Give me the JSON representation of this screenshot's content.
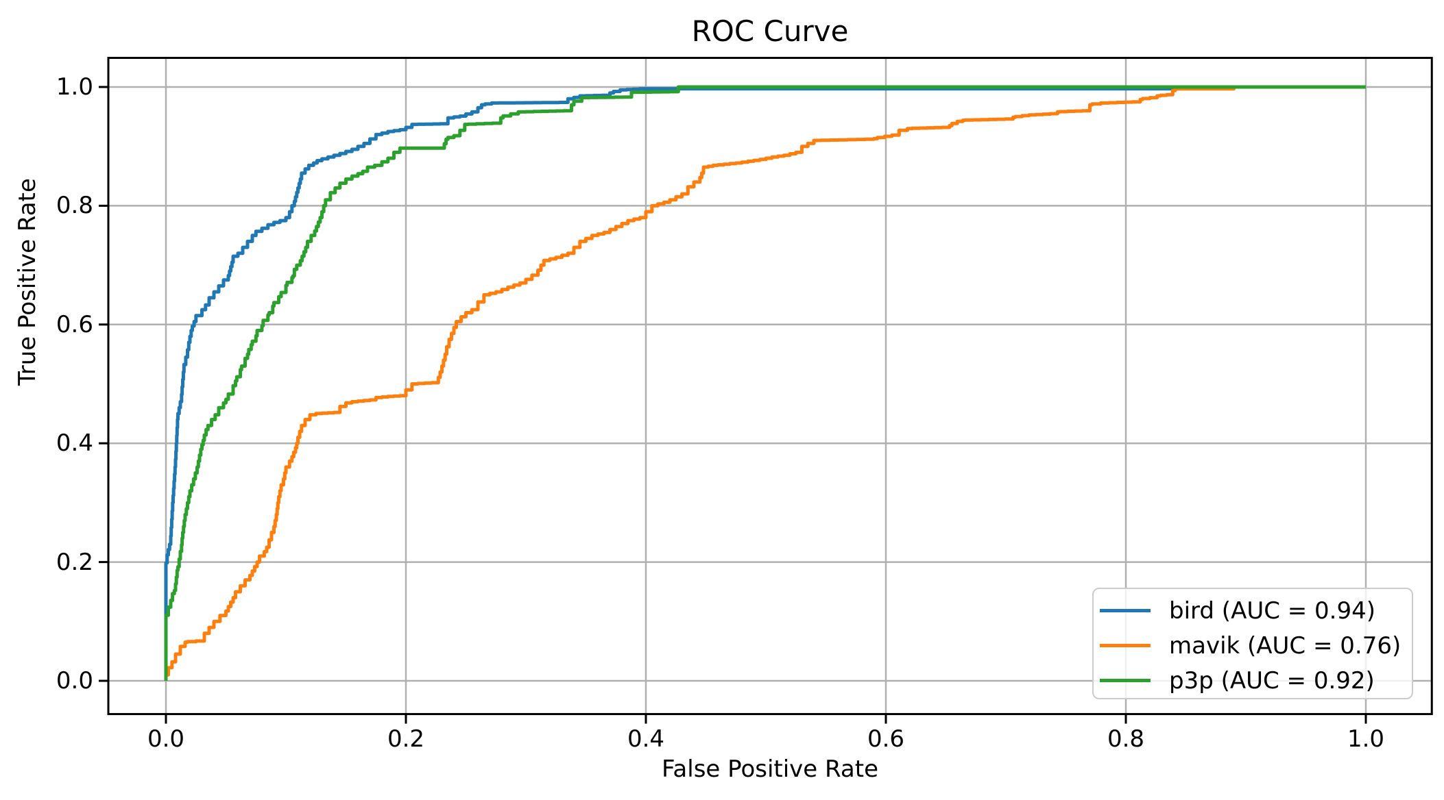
{
  "chart_data": {
    "type": "line",
    "subtype": "roc-step-curves",
    "title": "ROC Curve",
    "xlabel": "False Positive Rate",
    "ylabel": "True Positive Rate",
    "xlim": [
      -0.048,
      1.055
    ],
    "ylim": [
      -0.056,
      1.049
    ],
    "grid": true,
    "grid_color": "#b0b0b0",
    "spine_color": "#000000",
    "background_color": "#ffffff",
    "legend_position": "lower right",
    "x_ticks": [
      0.0,
      0.2,
      0.4,
      0.6,
      0.8,
      1.0
    ],
    "y_ticks": [
      0.0,
      0.2,
      0.4,
      0.6,
      0.8,
      1.0
    ],
    "x_tick_labels": [
      "0.0",
      "0.2",
      "0.4",
      "0.6",
      "0.8",
      "1.0"
    ],
    "y_tick_labels": [
      "0.0",
      "0.2",
      "0.4",
      "0.6",
      "0.8",
      "1.0"
    ],
    "series": [
      {
        "id": "bird",
        "name": "bird (AUC = 0.94)",
        "auc": 0.94,
        "color": "#1f77b4",
        "points": [
          [
            0,
            0
          ],
          [
            0,
            0.185
          ],
          [
            0.002,
            0.212
          ],
          [
            0.004,
            0.23
          ],
          [
            0.006,
            0.3
          ],
          [
            0.008,
            0.36
          ],
          [
            0.01,
            0.44
          ],
          [
            0.013,
            0.47
          ],
          [
            0.015,
            0.52
          ],
          [
            0.018,
            0.545
          ],
          [
            0.02,
            0.57
          ],
          [
            0.022,
            0.59
          ],
          [
            0.025,
            0.605
          ],
          [
            0.03,
            0.615
          ],
          [
            0.033,
            0.625
          ],
          [
            0.036,
            0.633
          ],
          [
            0.04,
            0.645
          ],
          [
            0.044,
            0.655
          ],
          [
            0.048,
            0.665
          ],
          [
            0.052,
            0.675
          ],
          [
            0.054,
            0.69
          ],
          [
            0.056,
            0.705
          ],
          [
            0.06,
            0.715
          ],
          [
            0.064,
            0.72
          ],
          [
            0.068,
            0.73
          ],
          [
            0.072,
            0.74
          ],
          [
            0.075,
            0.75
          ],
          [
            0.08,
            0.757
          ],
          [
            0.085,
            0.762
          ],
          [
            0.09,
            0.768
          ],
          [
            0.095,
            0.772
          ],
          [
            0.1,
            0.775
          ],
          [
            0.103,
            0.78
          ],
          [
            0.105,
            0.79
          ],
          [
            0.107,
            0.8
          ],
          [
            0.109,
            0.815
          ],
          [
            0.111,
            0.83
          ],
          [
            0.113,
            0.845
          ],
          [
            0.116,
            0.855
          ],
          [
            0.119,
            0.862
          ],
          [
            0.123,
            0.868
          ],
          [
            0.126,
            0.872
          ],
          [
            0.13,
            0.876
          ],
          [
            0.14,
            0.882
          ],
          [
            0.15,
            0.888
          ],
          [
            0.16,
            0.895
          ],
          [
            0.17,
            0.905
          ],
          [
            0.18,
            0.92
          ],
          [
            0.19,
            0.925
          ],
          [
            0.2,
            0.928
          ],
          [
            0.205,
            0.932
          ],
          [
            0.21,
            0.937
          ],
          [
            0.235,
            0.938
          ],
          [
            0.24,
            0.948
          ],
          [
            0.25,
            0.951
          ],
          [
            0.26,
            0.958
          ],
          [
            0.263,
            0.965
          ],
          [
            0.266,
            0.97
          ],
          [
            0.277,
            0.973
          ],
          [
            0.335,
            0.974
          ],
          [
            0.34,
            0.98
          ],
          [
            0.35,
            0.985
          ],
          [
            0.37,
            0.986
          ],
          [
            0.373,
            0.99
          ],
          [
            0.384,
            0.995
          ],
          [
            0.4,
            0.997
          ],
          [
            0.89,
            0.997
          ],
          [
            0.89,
            1
          ],
          [
            1,
            1
          ]
        ]
      },
      {
        "id": "mavik",
        "name": "mavik (AUC = 0.76)",
        "auc": 0.76,
        "color": "#ff7f0e",
        "points": [
          [
            0,
            0
          ],
          [
            0.002,
            0.01
          ],
          [
            0.005,
            0.022
          ],
          [
            0.008,
            0.032
          ],
          [
            0.012,
            0.045
          ],
          [
            0.016,
            0.058
          ],
          [
            0.018,
            0.065
          ],
          [
            0.032,
            0.067
          ],
          [
            0.036,
            0.08
          ],
          [
            0.04,
            0.09
          ],
          [
            0.045,
            0.1
          ],
          [
            0.05,
            0.11
          ],
          [
            0.054,
            0.125
          ],
          [
            0.058,
            0.14
          ],
          [
            0.062,
            0.15
          ],
          [
            0.066,
            0.16
          ],
          [
            0.07,
            0.17
          ],
          [
            0.074,
            0.185
          ],
          [
            0.078,
            0.2
          ],
          [
            0.082,
            0.21
          ],
          [
            0.086,
            0.225
          ],
          [
            0.09,
            0.25
          ],
          [
            0.092,
            0.27
          ],
          [
            0.094,
            0.3
          ],
          [
            0.096,
            0.32
          ],
          [
            0.098,
            0.33
          ],
          [
            0.1,
            0.35
          ],
          [
            0.103,
            0.36
          ],
          [
            0.105,
            0.37
          ],
          [
            0.108,
            0.385
          ],
          [
            0.11,
            0.4
          ],
          [
            0.113,
            0.42
          ],
          [
            0.116,
            0.43
          ],
          [
            0.12,
            0.44
          ],
          [
            0.125,
            0.448
          ],
          [
            0.13,
            0.45
          ],
          [
            0.145,
            0.452
          ],
          [
            0.15,
            0.462
          ],
          [
            0.155,
            0.468
          ],
          [
            0.16,
            0.47
          ],
          [
            0.175,
            0.473
          ],
          [
            0.18,
            0.477
          ],
          [
            0.19,
            0.479
          ],
          [
            0.2,
            0.48
          ],
          [
            0.205,
            0.49
          ],
          [
            0.21,
            0.5
          ],
          [
            0.227,
            0.502
          ],
          [
            0.23,
            0.52
          ],
          [
            0.234,
            0.55
          ],
          [
            0.238,
            0.575
          ],
          [
            0.242,
            0.595
          ],
          [
            0.246,
            0.605
          ],
          [
            0.25,
            0.613
          ],
          [
            0.255,
            0.62
          ],
          [
            0.26,
            0.625
          ],
          [
            0.265,
            0.638
          ],
          [
            0.27,
            0.65
          ],
          [
            0.28,
            0.655
          ],
          [
            0.29,
            0.663
          ],
          [
            0.3,
            0.67
          ],
          [
            0.305,
            0.676
          ],
          [
            0.31,
            0.683
          ],
          [
            0.315,
            0.7
          ],
          [
            0.32,
            0.708
          ],
          [
            0.33,
            0.713
          ],
          [
            0.34,
            0.72
          ],
          [
            0.345,
            0.73
          ],
          [
            0.35,
            0.74
          ],
          [
            0.36,
            0.75
          ],
          [
            0.37,
            0.755
          ],
          [
            0.38,
            0.765
          ],
          [
            0.39,
            0.775
          ],
          [
            0.4,
            0.78
          ],
          [
            0.405,
            0.79
          ],
          [
            0.41,
            0.8
          ],
          [
            0.42,
            0.806
          ],
          [
            0.425,
            0.81
          ],
          [
            0.43,
            0.815
          ],
          [
            0.435,
            0.82
          ],
          [
            0.44,
            0.832
          ],
          [
            0.445,
            0.84
          ],
          [
            0.448,
            0.855
          ],
          [
            0.452,
            0.865
          ],
          [
            0.46,
            0.868
          ],
          [
            0.47,
            0.87
          ],
          [
            0.48,
            0.872
          ],
          [
            0.49,
            0.875
          ],
          [
            0.5,
            0.878
          ],
          [
            0.51,
            0.882
          ],
          [
            0.52,
            0.885
          ],
          [
            0.53,
            0.89
          ],
          [
            0.535,
            0.9
          ],
          [
            0.54,
            0.905
          ],
          [
            0.546,
            0.91
          ],
          [
            0.59,
            0.912
          ],
          [
            0.593,
            0.913
          ],
          [
            0.611,
            0.919
          ],
          [
            0.618,
            0.927
          ],
          [
            0.622,
            0.93
          ],
          [
            0.653,
            0.932
          ],
          [
            0.655,
            0.935
          ],
          [
            0.664,
            0.942
          ],
          [
            0.666,
            0.944
          ],
          [
            0.706,
            0.946
          ],
          [
            0.708,
            0.949
          ],
          [
            0.725,
            0.953
          ],
          [
            0.743,
            0.955
          ],
          [
            0.745,
            0.958
          ],
          [
            0.77,
            0.96
          ],
          [
            0.772,
            0.97
          ],
          [
            0.786,
            0.973
          ],
          [
            0.812,
            0.975
          ],
          [
            0.814,
            0.979
          ],
          [
            0.826,
            0.982
          ],
          [
            0.829,
            0.985
          ],
          [
            0.839,
            0.987
          ],
          [
            0.841,
            0.994
          ],
          [
            0.845,
            0.997
          ],
          [
            0.89,
            0.997
          ],
          [
            0.89,
            1
          ],
          [
            1,
            1
          ]
        ]
      },
      {
        "id": "p3p",
        "name": "p3p (AUC = 0.92)",
        "auc": 0.92,
        "color": "#2ca02c",
        "points": [
          [
            0,
            0
          ],
          [
            0,
            0.097
          ],
          [
            0.004,
            0.124
          ],
          [
            0.007,
            0.147
          ],
          [
            0.008,
            0.152
          ],
          [
            0.01,
            0.186
          ],
          [
            0.011,
            0.192
          ],
          [
            0.013,
            0.218
          ],
          [
            0.014,
            0.24
          ],
          [
            0.016,
            0.27
          ],
          [
            0.018,
            0.29
          ],
          [
            0.02,
            0.31
          ],
          [
            0.023,
            0.33
          ],
          [
            0.026,
            0.35
          ],
          [
            0.028,
            0.37
          ],
          [
            0.03,
            0.39
          ],
          [
            0.032,
            0.405
          ],
          [
            0.035,
            0.423
          ],
          [
            0.038,
            0.43
          ],
          [
            0.041,
            0.44
          ],
          [
            0.044,
            0.448
          ],
          [
            0.048,
            0.46
          ],
          [
            0.05,
            0.468
          ],
          [
            0.052,
            0.474
          ],
          [
            0.056,
            0.483
          ],
          [
            0.058,
            0.497
          ],
          [
            0.059,
            0.505
          ],
          [
            0.062,
            0.512
          ],
          [
            0.063,
            0.524
          ],
          [
            0.066,
            0.53
          ],
          [
            0.068,
            0.543
          ],
          [
            0.069,
            0.55
          ],
          [
            0.071,
            0.558
          ],
          [
            0.072,
            0.566
          ],
          [
            0.075,
            0.572
          ],
          [
            0.076,
            0.581
          ],
          [
            0.08,
            0.59
          ],
          [
            0.081,
            0.598
          ],
          [
            0.085,
            0.607
          ],
          [
            0.086,
            0.616
          ],
          [
            0.089,
            0.62
          ],
          [
            0.09,
            0.631
          ],
          [
            0.094,
            0.637
          ],
          [
            0.096,
            0.647
          ],
          [
            0.1,
            0.654
          ],
          [
            0.101,
            0.666
          ],
          [
            0.105,
            0.671
          ],
          [
            0.106,
            0.679
          ],
          [
            0.107,
            0.682
          ],
          [
            0.109,
            0.693
          ],
          [
            0.112,
            0.7
          ],
          [
            0.115,
            0.715
          ],
          [
            0.118,
            0.73
          ],
          [
            0.121,
            0.74
          ],
          [
            0.124,
            0.75
          ],
          [
            0.127,
            0.765
          ],
          [
            0.13,
            0.78
          ],
          [
            0.133,
            0.8
          ],
          [
            0.137,
            0.81
          ],
          [
            0.141,
            0.822
          ],
          [
            0.145,
            0.83
          ],
          [
            0.15,
            0.838
          ],
          [
            0.155,
            0.845
          ],
          [
            0.16,
            0.85
          ],
          [
            0.168,
            0.858
          ],
          [
            0.174,
            0.865
          ],
          [
            0.18,
            0.868
          ],
          [
            0.19,
            0.88
          ],
          [
            0.195,
            0.89
          ],
          [
            0.2,
            0.897
          ],
          [
            0.232,
            0.897
          ],
          [
            0.235,
            0.912
          ],
          [
            0.245,
            0.918
          ],
          [
            0.249,
            0.927
          ],
          [
            0.252,
            0.937
          ],
          [
            0.279,
            0.939
          ],
          [
            0.281,
            0.948
          ],
          [
            0.3,
            0.958
          ],
          [
            0.338,
            0.96
          ],
          [
            0.34,
            0.97
          ],
          [
            0.353,
            0.982
          ],
          [
            0.388,
            0.983
          ],
          [
            0.39,
            0.991
          ],
          [
            0.427,
            0.992
          ],
          [
            0.43,
            1
          ],
          [
            1,
            1
          ]
        ]
      }
    ]
  }
}
